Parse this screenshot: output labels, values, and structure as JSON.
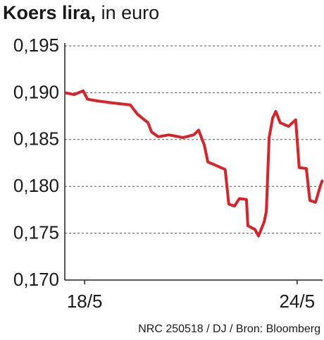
{
  "chart_data": {
    "type": "line",
    "title": "Koers lira,",
    "subtitle": "in euro",
    "source": "NRC 250518 / DJ / Bron: Bloomberg",
    "x": [
      17.44,
      17.7,
      17.96,
      18.08,
      18.4,
      18.8,
      19.29,
      19.49,
      19.79,
      19.89,
      20.08,
      20.38,
      20.78,
      21.08,
      21.22,
      21.38,
      21.48,
      21.67,
      21.97,
      22.07,
      22.23,
      22.37,
      22.57,
      22.61,
      22.81,
      22.91,
      23.07,
      23.13,
      23.21,
      23.31,
      23.4,
      23.52,
      23.76,
      23.96,
      24.06,
      24.26,
      24.36,
      24.52,
      24.66,
      24.72
    ],
    "series": [
      {
        "color": "#d9232a",
        "values": [
          0.19,
          0.1898,
          0.1902,
          0.1893,
          0.1891,
          0.1889,
          0.1887,
          0.1877,
          0.1868,
          0.1858,
          0.1853,
          0.1855,
          0.1852,
          0.1855,
          0.186,
          0.1844,
          0.1826,
          0.1823,
          0.1818,
          0.1781,
          0.1779,
          0.1787,
          0.1786,
          0.1758,
          0.1754,
          0.1747,
          0.1762,
          0.1773,
          0.1852,
          0.1873,
          0.188,
          0.1868,
          0.1864,
          0.1871,
          0.182,
          0.1819,
          0.1785,
          0.1783,
          0.1801,
          0.1807
        ]
      }
    ],
    "xlim": [
      17.44,
      24.72
    ],
    "xticks": [
      {
        "value": 18,
        "label": "18/5"
      },
      {
        "value": 24,
        "label": "24/5"
      }
    ],
    "ylim": [
      0.17,
      0.195
    ],
    "yticks": [
      {
        "value": 0.17,
        "label": "0,170"
      },
      {
        "value": 0.175,
        "label": "0,175"
      },
      {
        "value": 0.18,
        "label": "0,180"
      },
      {
        "value": 0.185,
        "label": "0,185"
      },
      {
        "value": 0.19,
        "label": "0,190"
      },
      {
        "value": 0.195,
        "label": "0,195"
      }
    ],
    "grid": true
  }
}
